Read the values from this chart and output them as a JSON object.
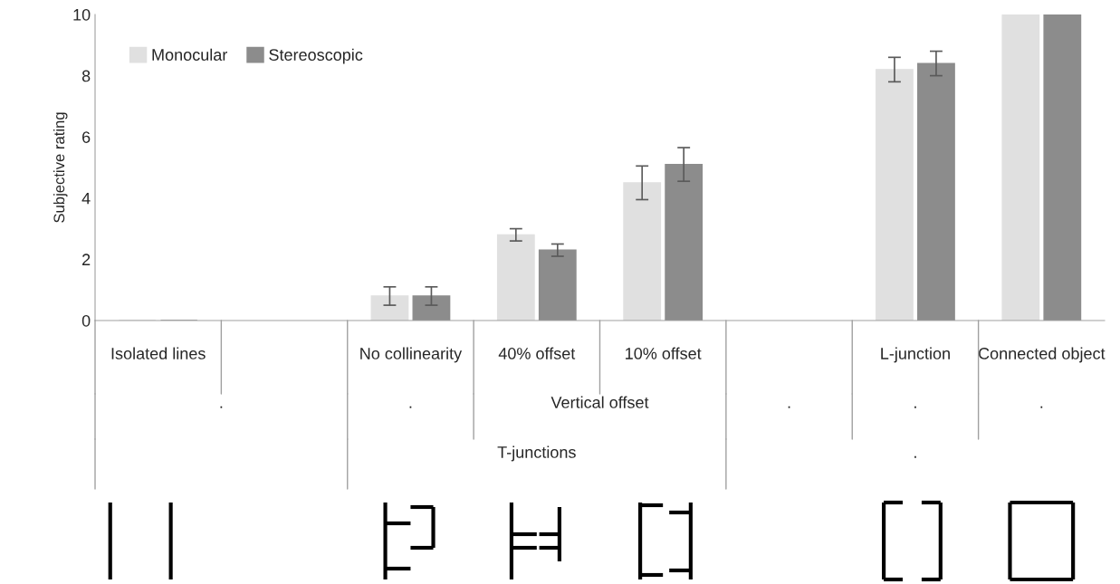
{
  "chart_data": {
    "type": "bar",
    "ylabel": "Subjective rating",
    "categories": [
      "Isolated lines",
      null,
      "No collinearity",
      "40% offset",
      "10% offset",
      null,
      "L-junction",
      "Connected object"
    ],
    "series": [
      {
        "name": "Monocular",
        "color": "#e0e0e0",
        "values": [
          0,
          null,
          0.8,
          2.8,
          4.5,
          null,
          8.2,
          10
        ],
        "errors": [
          null,
          null,
          0.3,
          0.2,
          0.55,
          null,
          0.4,
          null
        ]
      },
      {
        "name": "Stereoscopic",
        "color": "#8c8c8c",
        "values": [
          0,
          null,
          0.8,
          2.3,
          5.1,
          null,
          8.4,
          10
        ],
        "errors": [
          null,
          null,
          0.3,
          0.2,
          0.55,
          null,
          0.4,
          null
        ]
      }
    ],
    "annotations": [
      ".",
      ".",
      "Vertical offset",
      ".",
      ".",
      ".",
      "T-junctions",
      "."
    ],
    "ylim": [
      0,
      10
    ],
    "yticks": [
      0,
      2,
      4,
      6,
      8,
      10
    ],
    "grid": false,
    "legend": "top left"
  }
}
